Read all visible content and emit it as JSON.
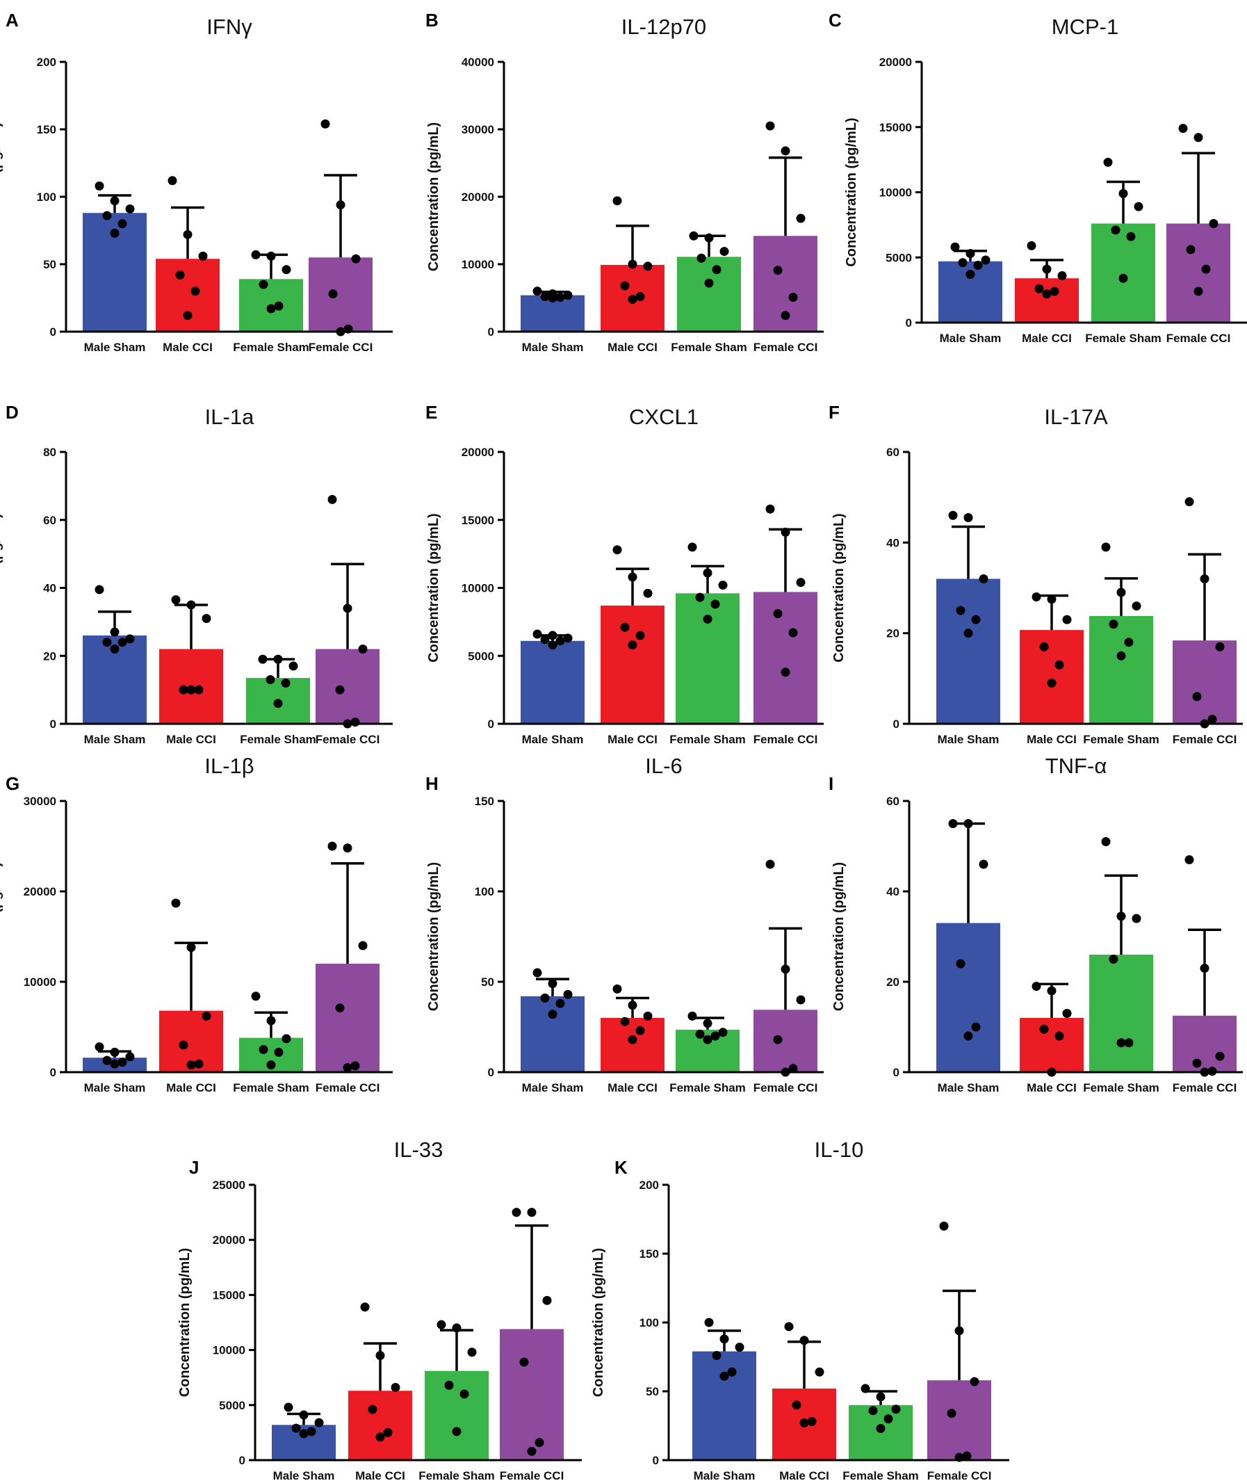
{
  "chart_data": [
    {
      "letter": "A",
      "type": "bar",
      "title": "IFNγ",
      "ylabel": "Concentration (pg/mL)",
      "categories": [
        "Male Sham",
        "Male CCI",
        "Female Sham",
        "Female CCI"
      ],
      "ylim": [
        0,
        200
      ],
      "yticks": [
        0,
        50,
        100,
        150,
        200
      ],
      "ytick_labels": [
        "0",
        "50",
        "100",
        "150",
        "200"
      ],
      "values": [
        88,
        54,
        39,
        55
      ],
      "errors": [
        13,
        38,
        18,
        61
      ],
      "points": [
        [
          108,
          97,
          91,
          86,
          80,
          73
        ],
        [
          112,
          72,
          56,
          42,
          30,
          12
        ],
        [
          57,
          56,
          46,
          35,
          19,
          17
        ],
        [
          154,
          94,
          54,
          28,
          2,
          0
        ]
      ]
    },
    {
      "letter": "B",
      "type": "bar",
      "title": "IL-12p70",
      "ylabel": "Concentration (pg/mL)",
      "categories": [
        "Male Sham",
        "Male CCI",
        "Female Sham",
        "Female CCI"
      ],
      "ylim": [
        0,
        40000
      ],
      "yticks": [
        0,
        10000,
        20000,
        30000,
        40000
      ],
      "ytick_labels": [
        "0",
        "10000",
        "20000",
        "30000",
        "40000"
      ],
      "values": [
        5400,
        9900,
        11100,
        14200
      ],
      "errors": [
        500,
        5800,
        3100,
        11600
      ],
      "points": [
        [
          6000,
          5600,
          5400,
          5200,
          5100,
          5000
        ],
        [
          19400,
          10000,
          9700,
          6800,
          5200,
          4800
        ],
        [
          14200,
          13900,
          11900,
          10900,
          9200,
          7200
        ],
        [
          30500,
          26800,
          16800,
          9100,
          5100,
          2400
        ]
      ]
    },
    {
      "letter": "C",
      "type": "bar",
      "title": "MCP-1",
      "ylabel": "Concentration (pg/mL)",
      "categories": [
        "Male Sham",
        "Male CCI",
        "Female Sham",
        "Female CCI"
      ],
      "ylim": [
        0,
        20000
      ],
      "yticks": [
        0,
        5000,
        10000,
        15000,
        20000
      ],
      "ytick_labels": [
        "0",
        "5000",
        "10000",
        "15000",
        "20000"
      ],
      "values": [
        4700,
        3400,
        7600,
        7600
      ],
      "errors": [
        800,
        1400,
        3200,
        5400
      ],
      "points": [
        [
          5800,
          5300,
          4800,
          4600,
          4400,
          3700
        ],
        [
          5900,
          4100,
          3600,
          2600,
          2400,
          2200
        ],
        [
          12300,
          9900,
          8900,
          7100,
          6600,
          3400
        ],
        [
          14900,
          14200,
          7600,
          5600,
          4100,
          2400
        ]
      ]
    },
    {
      "letter": "D",
      "type": "bar",
      "title": "IL-1a",
      "ylabel": "Concentration (pg/mL)",
      "categories": [
        "Male Sham",
        "Male CCI",
        "Female Sham",
        "Female CCI"
      ],
      "ylim": [
        0,
        80
      ],
      "yticks": [
        0,
        20,
        40,
        60,
        80
      ],
      "ytick_labels": [
        "0",
        "20",
        "40",
        "60",
        "80"
      ],
      "values": [
        26,
        22,
        13.5,
        22
      ],
      "errors": [
        7,
        13,
        5.5,
        25
      ],
      "points": [
        [
          39.5,
          27,
          25,
          24,
          24,
          22
        ],
        [
          36.5,
          35,
          31,
          10,
          10,
          10
        ],
        [
          19,
          19,
          17,
          13,
          12,
          6
        ],
        [
          66,
          34,
          22,
          10,
          0.5,
          0
        ]
      ]
    },
    {
      "letter": "E",
      "type": "bar",
      "title": "CXCL1",
      "ylabel": "Concentration (pg/mL)",
      "categories": [
        "Male Sham",
        "Male CCI",
        "Female Sham",
        "Female CCI"
      ],
      "ylim": [
        0,
        20000
      ],
      "yticks": [
        0,
        5000,
        10000,
        15000,
        20000
      ],
      "ytick_labels": [
        "0",
        "5000",
        "10000",
        "15000",
        "20000"
      ],
      "values": [
        6100,
        8700,
        9600,
        9700
      ],
      "errors": [
        400,
        2700,
        2000,
        4600
      ],
      "points": [
        [
          6600,
          6500,
          6300,
          6200,
          6100,
          5800
        ],
        [
          12800,
          10800,
          9600,
          7100,
          6500,
          5800
        ],
        [
          13000,
          11100,
          10200,
          9300,
          8800,
          7700
        ],
        [
          15800,
          14100,
          10400,
          8100,
          6700,
          3800
        ]
      ]
    },
    {
      "letter": "F",
      "type": "bar",
      "title": "IL-17A",
      "ylabel": "Concentration (pg/mL)",
      "categories": [
        "Male Sham",
        "Male CCI",
        "Female Sham",
        "Female CCI"
      ],
      "ylim": [
        0,
        60
      ],
      "yticks": [
        0,
        20,
        40,
        60
      ],
      "ytick_labels": [
        "0",
        "20",
        "40",
        "60"
      ],
      "values": [
        32,
        20.7,
        23.8,
        18.4
      ],
      "errors": [
        11.5,
        7.6,
        8.3,
        19
      ],
      "points": [
        [
          46,
          45.5,
          32,
          25,
          23,
          20
        ],
        [
          28,
          27.5,
          23,
          17,
          13,
          9
        ],
        [
          39,
          29,
          26,
          22,
          18,
          15
        ],
        [
          49,
          32,
          17,
          6,
          1,
          0
        ]
      ]
    },
    {
      "letter": "G",
      "type": "bar",
      "title": "IL-1β",
      "ylabel": "Concentration (pg/mL)",
      "categories": [
        "Male Sham",
        "Male CCI",
        "Female Sham",
        "Female CCI"
      ],
      "ylim": [
        0,
        30000
      ],
      "yticks": [
        0,
        10000,
        20000,
        30000
      ],
      "ytick_labels": [
        "0",
        "10000",
        "20000",
        "30000"
      ],
      "values": [
        1600,
        6800,
        3800,
        12000
      ],
      "errors": [
        700,
        7500,
        2800,
        11100
      ],
      "points": [
        [
          2800,
          2200,
          1700,
          1300,
          1100,
          900
        ],
        [
          18700,
          13800,
          6200,
          3000,
          900,
          800
        ],
        [
          8400,
          5700,
          3700,
          2500,
          2200,
          800
        ],
        [
          25000,
          24800,
          14000,
          7100,
          700,
          500
        ]
      ]
    },
    {
      "letter": "H",
      "type": "bar",
      "title": "IL-6",
      "ylabel": "Concentration (pg/mL)",
      "categories": [
        "Male Sham",
        "Male CCI",
        "Female Sham",
        "Female CCI"
      ],
      "ylim": [
        0,
        150
      ],
      "yticks": [
        0,
        50,
        100,
        150
      ],
      "ytick_labels": [
        "0",
        "50",
        "100",
        "150"
      ],
      "values": [
        42,
        30,
        23.5,
        34.5
      ],
      "errors": [
        9.5,
        11,
        6.5,
        45
      ],
      "points": [
        [
          55,
          49,
          43,
          41,
          38,
          32
        ],
        [
          46,
          37,
          31,
          28,
          23,
          18
        ],
        [
          31,
          27,
          22,
          21,
          20,
          18
        ],
        [
          115,
          57,
          40,
          18,
          2,
          0
        ]
      ]
    },
    {
      "letter": "I",
      "type": "bar",
      "title": "TNF-α",
      "ylabel": "Concentration (pg/mL)",
      "categories": [
        "Male Sham",
        "Male CCI",
        "Female Sham",
        "Female CCI"
      ],
      "ylim": [
        0,
        60
      ],
      "yticks": [
        0,
        20,
        40,
        60
      ],
      "ytick_labels": [
        "0",
        "20",
        "40",
        "60"
      ],
      "values": [
        33,
        12,
        26,
        12.5
      ],
      "errors": [
        22,
        7.5,
        17.5,
        19
      ],
      "points": [
        [
          55,
          55,
          46,
          24,
          10,
          8
        ],
        [
          19,
          18,
          13,
          9.5,
          8,
          0
        ],
        [
          51,
          34.5,
          34,
          25,
          6.5,
          6.5
        ],
        [
          47,
          23,
          3.5,
          2,
          0.2,
          0
        ]
      ]
    },
    {
      "letter": "J",
      "type": "bar",
      "title": "IL-33",
      "ylabel": "Concentration (pg/mL)",
      "categories": [
        "Male Sham",
        "Male CCI",
        "Female Sham",
        "Female CCI"
      ],
      "ylim": [
        0,
        25000
      ],
      "yticks": [
        0,
        5000,
        10000,
        15000,
        20000,
        25000
      ],
      "ytick_labels": [
        "0",
        "5000",
        "10000",
        "15000",
        "20000",
        "25000"
      ],
      "values": [
        3200,
        6300,
        8100,
        11900
      ],
      "errors": [
        1000,
        4300,
        3700,
        9400
      ],
      "points": [
        [
          4800,
          4100,
          3400,
          2900,
          2600,
          2400
        ],
        [
          13900,
          9500,
          6600,
          4600,
          2500,
          2100
        ],
        [
          12300,
          12000,
          9800,
          6800,
          6000,
          2600
        ],
        [
          22500,
          22500,
          14500,
          8900,
          1600,
          800
        ]
      ]
    },
    {
      "letter": "K",
      "type": "bar",
      "title": "IL-10",
      "ylabel": "Concentration (pg/mL)",
      "categories": [
        "Male Sham",
        "Male CCI",
        "Female Sham",
        "Female CCI"
      ],
      "ylim": [
        0,
        200
      ],
      "yticks": [
        0,
        50,
        100,
        150,
        200
      ],
      "ytick_labels": [
        "0",
        "50",
        "100",
        "150",
        "200"
      ],
      "values": [
        79,
        52,
        40,
        58
      ],
      "errors": [
        15,
        34,
        10,
        65
      ],
      "points": [
        [
          100,
          88,
          82,
          76,
          64,
          61
        ],
        [
          97,
          87,
          64,
          40,
          28,
          27
        ],
        [
          52,
          46,
          37,
          36,
          30,
          23
        ],
        [
          170,
          94,
          57,
          34,
          3,
          2
        ]
      ]
    }
  ],
  "bar_colors": [
    "#3a53a4",
    "#ec1c24",
    "#39b54a",
    "#8e4b9d"
  ],
  "point_color": "#000000"
}
